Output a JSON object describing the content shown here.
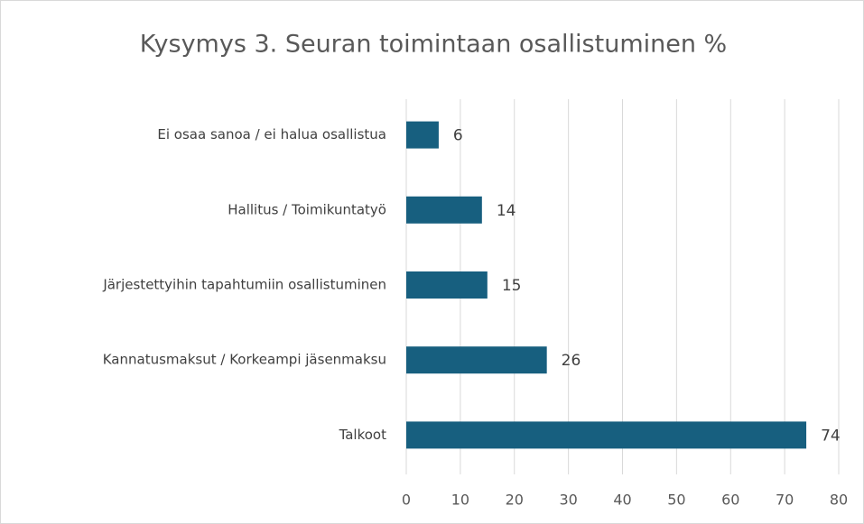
{
  "chart_data": {
    "type": "bar",
    "orientation": "horizontal",
    "title": "Kysymys 3. Seuran toimintaan osallistuminen %",
    "categories": [
      "Ei osaa sanoa / ei halua osallistua",
      "Hallitus / Toimikuntatyö",
      "Järjestettyihin tapahtumiin osallistuminen",
      "Kannatusmaksut / Korkeampi jäsenmaksu",
      "Talkoot"
    ],
    "values": [
      6,
      14,
      15,
      26,
      74
    ],
    "color": "#175f7f",
    "xlim": [
      0,
      80
    ],
    "xticks": [
      0,
      10,
      20,
      30,
      40,
      50,
      60,
      70,
      80
    ],
    "grid": true
  }
}
